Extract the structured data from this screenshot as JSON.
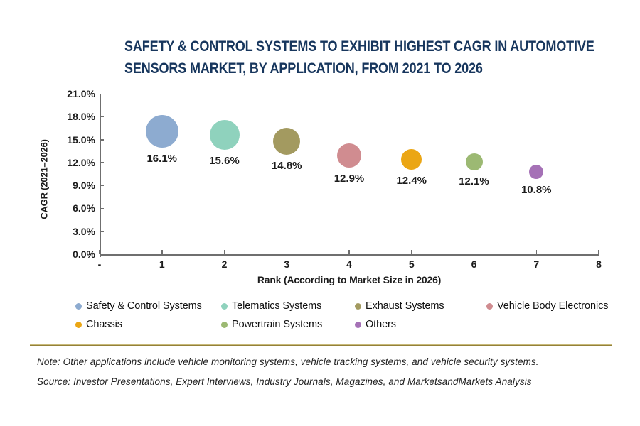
{
  "header": {
    "title_line1": "SAFETY & CONTROL SYSTEMS TO EXHIBIT HIGHEST CAGR IN AUTOMOTIVE",
    "title_line2": "SENSORS MARKET, BY APPLICATION, FROM 2021 TO 2026"
  },
  "chart_data": {
    "type": "scatter",
    "subtype": "bubble",
    "title": "SAFETY & CONTROL SYSTEMS TO EXHIBIT HIGHEST CAGR IN AUTOMOTIVE SENSORS MARKET, BY APPLICATION, FROM 2021 TO 2026",
    "xlabel": "Rank (According to Market Size in 2026)",
    "ylabel": "CAGR (2021–2026)",
    "xlim": [
      0,
      8
    ],
    "ylim": [
      0,
      21
    ],
    "grid": false,
    "legend_position": "bottom",
    "y_ticks": [
      {
        "value": 21,
        "label": "21.0%"
      },
      {
        "value": 18,
        "label": "18.0%"
      },
      {
        "value": 15,
        "label": "15.0%"
      },
      {
        "value": 12,
        "label": "12.0%"
      },
      {
        "value": 9,
        "label": "9.0%"
      },
      {
        "value": 6,
        "label": "6.0%"
      },
      {
        "value": 3,
        "label": "3.0%"
      },
      {
        "value": 0,
        "label": "0.0%"
      }
    ],
    "x_ticks": [
      {
        "value": 0,
        "label": "-"
      },
      {
        "value": 1,
        "label": "1"
      },
      {
        "value": 2,
        "label": "2"
      },
      {
        "value": 3,
        "label": "3"
      },
      {
        "value": 4,
        "label": "4"
      },
      {
        "value": 5,
        "label": "5"
      },
      {
        "value": 6,
        "label": "6"
      },
      {
        "value": 7,
        "label": "7"
      },
      {
        "value": 8,
        "label": "8"
      }
    ],
    "points": [
      {
        "name": "Safety & Control Systems",
        "rank": 1,
        "cagr": 16.1,
        "label": "16.1%",
        "color": "#8dabd0",
        "radius_px": 23
      },
      {
        "name": "Telematics Systems",
        "rank": 2,
        "cagr": 15.6,
        "label": "15.6%",
        "color": "#8fd2bd",
        "radius_px": 21
      },
      {
        "name": "Exhaust Systems",
        "rank": 3,
        "cagr": 14.8,
        "label": "14.8%",
        "color": "#a39a60",
        "radius_px": 19
      },
      {
        "name": "Vehicle Body Electronics",
        "rank": 4,
        "cagr": 12.9,
        "label": "12.9%",
        "color": "#d08c90",
        "radius_px": 17
      },
      {
        "name": "Chassis",
        "rank": 5,
        "cagr": 12.4,
        "label": "12.4%",
        "color": "#eba614",
        "radius_px": 14.5
      },
      {
        "name": "Powertrain Systems",
        "rank": 6,
        "cagr": 12.1,
        "label": "12.1%",
        "color": "#9cb973",
        "radius_px": 12
      },
      {
        "name": "Others",
        "rank": 7,
        "cagr": 10.8,
        "label": "10.8%",
        "color": "#a571b6",
        "radius_px": 10
      }
    ]
  },
  "legend": {
    "items": [
      {
        "label": "Safety & Control Systems",
        "color": "#8dabd0"
      },
      {
        "label": "Telematics Systems",
        "color": "#8fd2bd"
      },
      {
        "label": "Exhaust Systems",
        "color": "#a39a60"
      },
      {
        "label": "Vehicle Body Electronics",
        "color": "#d08c90"
      },
      {
        "label": "Chassis",
        "color": "#eba614"
      },
      {
        "label": "Powertrain Systems",
        "color": "#9cb973"
      },
      {
        "label": "Others",
        "color": "#a571b6"
      }
    ]
  },
  "footer": {
    "note": "Note: Other applications include vehicle monitoring systems, vehicle tracking systems, and vehicle security systems.",
    "source": "Source: Investor Presentations, Expert Interviews, Industry Journals, Magazines, and MarketsandMarkets Analysis",
    "divider_color": "#8a762c"
  }
}
